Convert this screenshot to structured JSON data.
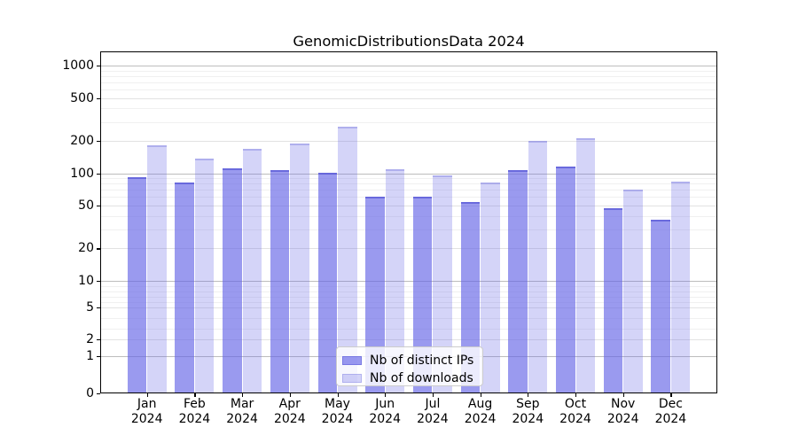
{
  "title": "GenomicDistributionsData 2024",
  "chart_data": {
    "type": "bar",
    "title": "GenomicDistributionsData 2024",
    "categories": [
      "Jan 2024",
      "Feb 2024",
      "Mar 2024",
      "Apr 2024",
      "May 2024",
      "Jun 2024",
      "Jul 2024",
      "Aug 2024",
      "Sep 2024",
      "Oct 2024",
      "Nov 2024",
      "Dec 2024"
    ],
    "series": [
      {
        "name": "Nb of distinct IPs",
        "color": "#9a9aee",
        "values": [
          92,
          82,
          112,
          106,
          101,
          61,
          60,
          54,
          107,
          115,
          47,
          37
        ]
      },
      {
        "name": "Nb of downloads",
        "color": "#d8d8f8",
        "values": [
          181,
          138,
          170,
          190,
          268,
          109,
          96,
          82,
          199,
          211,
          71,
          83
        ]
      }
    ],
    "xlabel": "",
    "ylabel": "",
    "y_ticks": [
      0,
      1,
      2,
      5,
      10,
      20,
      50,
      100,
      200,
      500,
      1000
    ],
    "y_scale": "symlog-like (linear near 0, logarithmic above 10)",
    "ylim": [
      0,
      1350
    ],
    "grid": "both, horizontal only",
    "legend_position": "lower center inside plot",
    "legend_entries": [
      "Nb of distinct IPs",
      "Nb of downloads"
    ]
  },
  "colors": {
    "bar_ips": "#9a9aee",
    "bar_downloads": "#d8d8f8",
    "grid_major": "#bdbdbd",
    "grid_minor": "#f0f0f0",
    "spine": "#000000",
    "background": "#ffffff"
  }
}
